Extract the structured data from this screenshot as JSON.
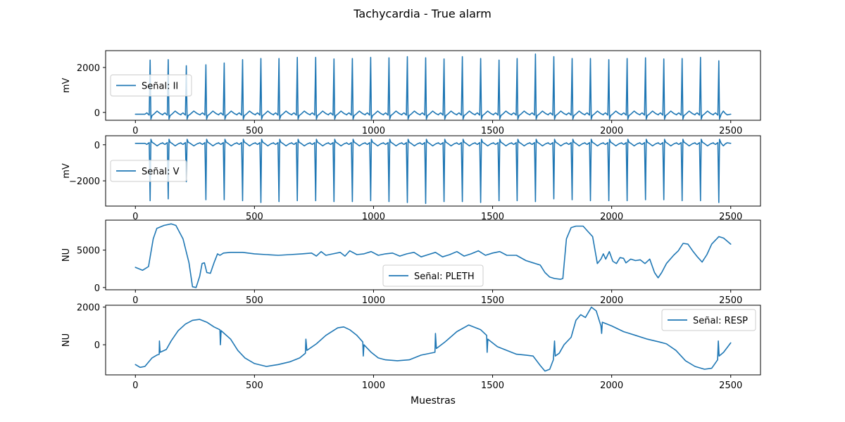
{
  "chart_data": {
    "type": "line",
    "title": "Tachycardia - True alarm",
    "xlabel": "Muestras",
    "x_range": [
      0,
      2500
    ],
    "xlim": [
      -125,
      2625
    ],
    "xticks": [
      0,
      500,
      1000,
      1500,
      2000,
      2500
    ],
    "line_color": "#1f77b4",
    "panels": [
      {
        "series_name": "Señal: II",
        "ylabel": "mV",
        "ylim": [
          -350,
          2750
        ],
        "yticks": [
          0,
          2000
        ],
        "legend": "center-left",
        "kind": "ecg_positive",
        "baseline": -80,
        "r_peaks": [
          {
            "x": 62,
            "y": 2330
          },
          {
            "x": 138,
            "y": 2350
          },
          {
            "x": 214,
            "y": 2080
          },
          {
            "x": 296,
            "y": 2120
          },
          {
            "x": 373,
            "y": 2200
          },
          {
            "x": 450,
            "y": 2350
          },
          {
            "x": 527,
            "y": 2400
          },
          {
            "x": 603,
            "y": 2400
          },
          {
            "x": 680,
            "y": 2450
          },
          {
            "x": 757,
            "y": 2450
          },
          {
            "x": 834,
            "y": 2380
          },
          {
            "x": 911,
            "y": 2400
          },
          {
            "x": 988,
            "y": 2450
          },
          {
            "x": 1065,
            "y": 2430
          },
          {
            "x": 1142,
            "y": 2480
          },
          {
            "x": 1219,
            "y": 2430
          },
          {
            "x": 1296,
            "y": 2380
          },
          {
            "x": 1373,
            "y": 2480
          },
          {
            "x": 1450,
            "y": 2400
          },
          {
            "x": 1527,
            "y": 2330
          },
          {
            "x": 1603,
            "y": 2400
          },
          {
            "x": 1680,
            "y": 2600
          },
          {
            "x": 1757,
            "y": 2480
          },
          {
            "x": 1834,
            "y": 2400
          },
          {
            "x": 1911,
            "y": 2400
          },
          {
            "x": 1988,
            "y": 2350
          },
          {
            "x": 2065,
            "y": 2400
          },
          {
            "x": 2142,
            "y": 2430
          },
          {
            "x": 2219,
            "y": 2380
          },
          {
            "x": 2296,
            "y": 2400
          },
          {
            "x": 2373,
            "y": 2450
          },
          {
            "x": 2450,
            "y": 2300
          }
        ]
      },
      {
        "series_name": "Señal: V",
        "ylabel": "mV",
        "ylim": [
          -3400,
          500
        ],
        "yticks": [
          -2000,
          0
        ],
        "legend": "center-left",
        "kind": "ecg_negative",
        "baseline": 80,
        "r_peaks": [
          {
            "x": 62,
            "y": -3100
          },
          {
            "x": 138,
            "y": -3000
          },
          {
            "x": 214,
            "y": -2050
          },
          {
            "x": 296,
            "y": -3050
          },
          {
            "x": 373,
            "y": -3050
          },
          {
            "x": 450,
            "y": -3100
          },
          {
            "x": 527,
            "y": -3200
          },
          {
            "x": 603,
            "y": -3150
          },
          {
            "x": 680,
            "y": -3100
          },
          {
            "x": 757,
            "y": -3100
          },
          {
            "x": 834,
            "y": -3150
          },
          {
            "x": 911,
            "y": -3150
          },
          {
            "x": 988,
            "y": -3100
          },
          {
            "x": 1065,
            "y": -3150
          },
          {
            "x": 1142,
            "y": -3200
          },
          {
            "x": 1219,
            "y": -3250
          },
          {
            "x": 1296,
            "y": -3150
          },
          {
            "x": 1373,
            "y": -3150
          },
          {
            "x": 1450,
            "y": -3200
          },
          {
            "x": 1527,
            "y": -3100
          },
          {
            "x": 1603,
            "y": -3100
          },
          {
            "x": 1680,
            "y": -3150
          },
          {
            "x": 1757,
            "y": -3000
          },
          {
            "x": 1834,
            "y": -3050
          },
          {
            "x": 1911,
            "y": -3100
          },
          {
            "x": 1988,
            "y": -3100
          },
          {
            "x": 2065,
            "y": -3100
          },
          {
            "x": 2142,
            "y": -3050
          },
          {
            "x": 2219,
            "y": -3050
          },
          {
            "x": 2296,
            "y": -3100
          },
          {
            "x": 2373,
            "y": -3100
          },
          {
            "x": 2450,
            "y": -3200
          }
        ]
      },
      {
        "series_name": "Señal: PLETH",
        "ylabel": "NU",
        "ylim": [
          -300,
          9000
        ],
        "yticks": [
          0,
          5000
        ],
        "legend": "lower-center",
        "kind": "wave",
        "points": [
          [
            0,
            2700
          ],
          [
            30,
            2300
          ],
          [
            55,
            2800
          ],
          [
            75,
            6500
          ],
          [
            90,
            7900
          ],
          [
            120,
            8300
          ],
          [
            150,
            8500
          ],
          [
            170,
            8300
          ],
          [
            200,
            6500
          ],
          [
            225,
            3300
          ],
          [
            240,
            100
          ],
          [
            255,
            0
          ],
          [
            270,
            1500
          ],
          [
            280,
            3200
          ],
          [
            290,
            3300
          ],
          [
            300,
            2000
          ],
          [
            315,
            1900
          ],
          [
            330,
            3300
          ],
          [
            345,
            4500
          ],
          [
            355,
            4300
          ],
          [
            370,
            4600
          ],
          [
            400,
            4700
          ],
          [
            450,
            4700
          ],
          [
            500,
            4500
          ],
          [
            550,
            4400
          ],
          [
            600,
            4300
          ],
          [
            650,
            4400
          ],
          [
            700,
            4500
          ],
          [
            740,
            4600
          ],
          [
            760,
            4200
          ],
          [
            780,
            4800
          ],
          [
            800,
            4300
          ],
          [
            830,
            4500
          ],
          [
            860,
            4700
          ],
          [
            880,
            4200
          ],
          [
            900,
            4900
          ],
          [
            930,
            4400
          ],
          [
            960,
            4500
          ],
          [
            990,
            4800
          ],
          [
            1020,
            4300
          ],
          [
            1050,
            4500
          ],
          [
            1080,
            4600
          ],
          [
            1110,
            4200
          ],
          [
            1140,
            4500
          ],
          [
            1170,
            4700
          ],
          [
            1200,
            4100
          ],
          [
            1230,
            4400
          ],
          [
            1260,
            4700
          ],
          [
            1290,
            4100
          ],
          [
            1320,
            4400
          ],
          [
            1350,
            4800
          ],
          [
            1380,
            4200
          ],
          [
            1410,
            4500
          ],
          [
            1440,
            4900
          ],
          [
            1470,
            4300
          ],
          [
            1500,
            4600
          ],
          [
            1530,
            4800
          ],
          [
            1560,
            4300
          ],
          [
            1600,
            4300
          ],
          [
            1640,
            3600
          ],
          [
            1670,
            3300
          ],
          [
            1700,
            3000
          ],
          [
            1720,
            2000
          ],
          [
            1740,
            1400
          ],
          [
            1760,
            1200
          ],
          [
            1785,
            1100
          ],
          [
            1795,
            1200
          ],
          [
            1810,
            6500
          ],
          [
            1830,
            8000
          ],
          [
            1850,
            8200
          ],
          [
            1880,
            8200
          ],
          [
            1900,
            7500
          ],
          [
            1920,
            6800
          ],
          [
            1940,
            3200
          ],
          [
            1955,
            3800
          ],
          [
            1965,
            4500
          ],
          [
            1975,
            3800
          ],
          [
            1990,
            4800
          ],
          [
            2005,
            3500
          ],
          [
            2020,
            3200
          ],
          [
            2035,
            4000
          ],
          [
            2050,
            3900
          ],
          [
            2060,
            3300
          ],
          [
            2080,
            3800
          ],
          [
            2100,
            3600
          ],
          [
            2120,
            3700
          ],
          [
            2140,
            3200
          ],
          [
            2160,
            3800
          ],
          [
            2180,
            2000
          ],
          [
            2195,
            1300
          ],
          [
            2210,
            2000
          ],
          [
            2230,
            3200
          ],
          [
            2260,
            4300
          ],
          [
            2280,
            4900
          ],
          [
            2300,
            5900
          ],
          [
            2320,
            5800
          ],
          [
            2340,
            4900
          ],
          [
            2360,
            4100
          ],
          [
            2380,
            3400
          ],
          [
            2400,
            4400
          ],
          [
            2420,
            5800
          ],
          [
            2450,
            6800
          ],
          [
            2470,
            6600
          ],
          [
            2500,
            5800
          ]
        ]
      },
      {
        "series_name": "Señal: RESP",
        "ylabel": "NU",
        "ylim": [
          -1600,
          2100
        ],
        "yticks": [
          0,
          2000
        ],
        "legend": "upper-right",
        "kind": "wave",
        "points": [
          [
            0,
            -1050
          ],
          [
            20,
            -1200
          ],
          [
            40,
            -1150
          ],
          [
            70,
            -700
          ],
          [
            90,
            -550
          ],
          [
            100,
            -500
          ],
          [
            101,
            200
          ],
          [
            104,
            -400
          ],
          [
            130,
            -250
          ],
          [
            150,
            200
          ],
          [
            180,
            750
          ],
          [
            210,
            1100
          ],
          [
            240,
            1300
          ],
          [
            270,
            1350
          ],
          [
            300,
            1200
          ],
          [
            330,
            950
          ],
          [
            355,
            800
          ],
          [
            357,
            0
          ],
          [
            360,
            750
          ],
          [
            400,
            300
          ],
          [
            430,
            -300
          ],
          [
            460,
            -700
          ],
          [
            500,
            -1000
          ],
          [
            550,
            -1150
          ],
          [
            600,
            -1050
          ],
          [
            650,
            -900
          ],
          [
            690,
            -700
          ],
          [
            714,
            -450
          ],
          [
            716,
            300
          ],
          [
            720,
            -300
          ],
          [
            760,
            50
          ],
          [
            800,
            500
          ],
          [
            850,
            900
          ],
          [
            875,
            950
          ],
          [
            900,
            800
          ],
          [
            930,
            500
          ],
          [
            955,
            150
          ],
          [
            957,
            -600
          ],
          [
            960,
            0
          ],
          [
            990,
            -400
          ],
          [
            1020,
            -700
          ],
          [
            1050,
            -800
          ],
          [
            1100,
            -850
          ],
          [
            1150,
            -800
          ],
          [
            1200,
            -550
          ],
          [
            1258,
            -400
          ],
          [
            1260,
            600
          ],
          [
            1264,
            -200
          ],
          [
            1300,
            150
          ],
          [
            1350,
            700
          ],
          [
            1400,
            1050
          ],
          [
            1450,
            800
          ],
          [
            1475,
            500
          ],
          [
            1477,
            -400
          ],
          [
            1480,
            300
          ],
          [
            1520,
            -100
          ],
          [
            1560,
            -300
          ],
          [
            1600,
            -500
          ],
          [
            1640,
            -550
          ],
          [
            1670,
            -600
          ],
          [
            1700,
            -1100
          ],
          [
            1720,
            -1400
          ],
          [
            1740,
            -1300
          ],
          [
            1755,
            -800
          ],
          [
            1760,
            200
          ],
          [
            1763,
            -600
          ],
          [
            1780,
            -450
          ],
          [
            1800,
            0
          ],
          [
            1830,
            400
          ],
          [
            1850,
            1300
          ],
          [
            1870,
            1600
          ],
          [
            1890,
            1450
          ],
          [
            1915,
            2000
          ],
          [
            1935,
            1800
          ],
          [
            1955,
            1000
          ],
          [
            1958,
            600
          ],
          [
            1961,
            1200
          ],
          [
            2000,
            1000
          ],
          [
            2050,
            700
          ],
          [
            2100,
            500
          ],
          [
            2150,
            300
          ],
          [
            2200,
            150
          ],
          [
            2230,
            50
          ],
          [
            2270,
            -300
          ],
          [
            2310,
            -850
          ],
          [
            2350,
            -1150
          ],
          [
            2390,
            -1300
          ],
          [
            2420,
            -1250
          ],
          [
            2445,
            -800
          ],
          [
            2448,
            200
          ],
          [
            2451,
            -600
          ],
          [
            2470,
            -400
          ],
          [
            2500,
            100
          ]
        ]
      }
    ]
  }
}
